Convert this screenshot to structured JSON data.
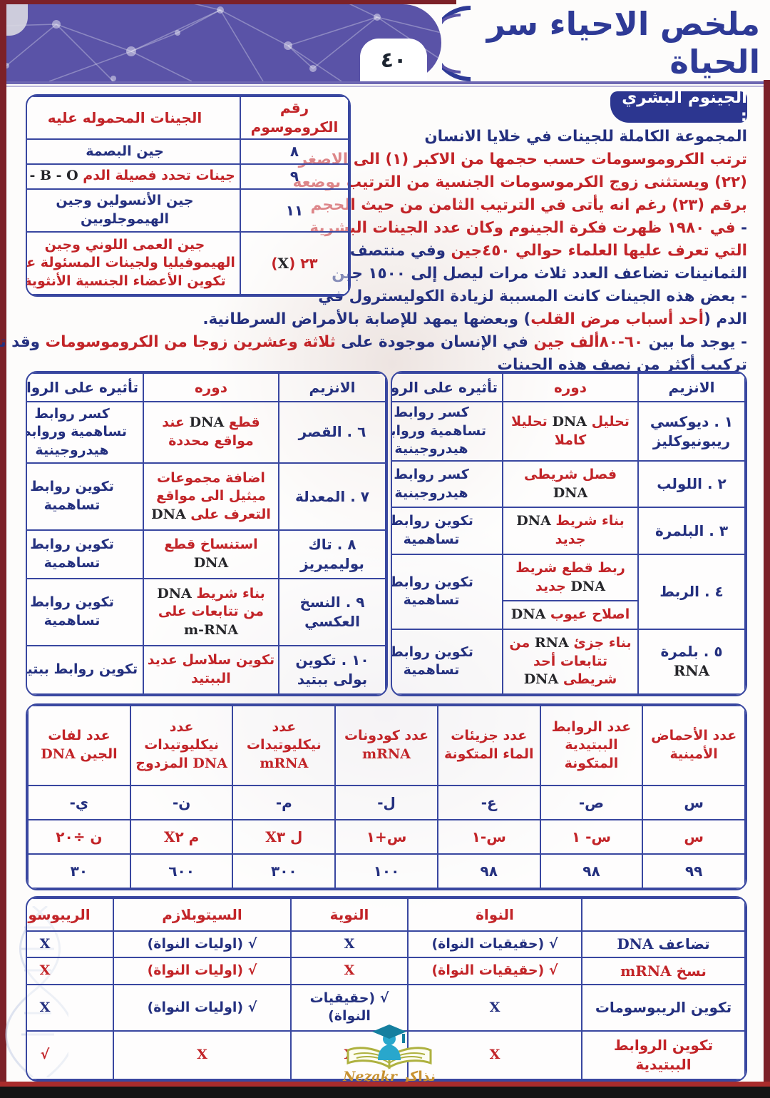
{
  "page": {
    "number": "٤٠",
    "title": "ملخص الاحياء سر الحياة"
  },
  "brand": {
    "ar": "نذاكر",
    "en": "Nezakr"
  },
  "genome": {
    "heading": "الجينوم البشري :",
    "lines": [
      [
        {
          "t": "المجموعة الكاملة للجينات في خلايا الانسان",
          "c": "b"
        }
      ],
      [
        {
          "t": "ترتب الكروموسومات حسب حجمها من الاكبر (١) الى الاصغر",
          "c": "r"
        }
      ],
      [
        {
          "t": "(٢٢) ويستثنى زوج الكرموسومات الجنسية من الترتيب بوضعه",
          "c": "r"
        }
      ],
      [
        {
          "t": "برقم (٢٣) رغم انه يأتى في الترتيب الثامن من حيث الحجم",
          "c": "r"
        }
      ],
      [
        {
          "t": "- ",
          "c": "b"
        },
        {
          "t": "في ١٩٨٠ ظهرت فكرة الجينوم وكان عدد الجينات البشرية",
          "c": "r"
        }
      ],
      [
        {
          "t": "التي تعرف عليها العلماء حوالي ٤٥٠جين ",
          "c": "r"
        },
        {
          "t": "وفي منتصف",
          "c": "b"
        }
      ],
      [
        {
          "t": "الثمانينات تضاعف العدد ثلاث مرات ليصل إلى ١٥٠٠ جين",
          "c": "b"
        }
      ],
      [
        {
          "t": "- بعض هذه الجينات كانت المسببة لزيادة الكوليسترول في",
          "c": "b"
        }
      ],
      [
        {
          "t": "الدم (",
          "c": "b"
        },
        {
          "t": "أحد أسباب مرض القلب",
          "c": "r"
        },
        {
          "t": ") وبعضها يمهد للإصابة بالأمراض السرطانية.",
          "c": "b"
        }
      ],
      [
        {
          "t": "- يوجد ما بين ",
          "c": "b"
        },
        {
          "t": "٦٠-٨٠ألف جين",
          "c": "r"
        },
        {
          "t": " في الإنسان موجودة على ",
          "c": "b"
        },
        {
          "t": "ثلاثة وعشرين زوجا من الكروموسومات",
          "c": "r"
        },
        {
          "t": " وقد تم اكتشاف",
          "c": "b"
        }
      ],
      [
        {
          "t": "تركيب أكثر من نصف هذه الجينات",
          "c": "b"
        }
      ]
    ]
  },
  "chromosome_table": {
    "headers": {
      "number": "رقم الكروموسوم",
      "genes": "الجينات المحموله عليه"
    },
    "rows": [
      {
        "number": "٨",
        "num_tone": "b",
        "genes": "جين البصمة",
        "genes_tone": "b"
      },
      {
        "number": "٩",
        "num_tone": "b",
        "genes": "جينات تحدد فصيلة الدم A - B - O",
        "genes_tone": "r"
      },
      {
        "number": "١١",
        "num_tone": "b",
        "genes": "جين الأنسولين وجين الهيموجلوبين",
        "genes_tone": "b"
      },
      {
        "number": "٢٣ (X)",
        "num_tone": "r",
        "genes": "جين العمى اللوني وجين الهيموفيليا ولجينات المسئولة عن تكوين الأعضاء الجنسية الأنثوية",
        "genes_tone": "r"
      }
    ]
  },
  "enzyme_table_right": {
    "headers": {
      "enzyme": "الانزيم",
      "role": "دوره",
      "effect": "تأثيره على الروابط"
    },
    "rows": [
      {
        "name": "١ . ديوكسي ريبونيوكليز",
        "role": "تحليل DNA تحليلا كاملا",
        "effect": "كسر روابط تساهمية وروابط هيدروجينية"
      },
      {
        "name": "٢ . اللولب",
        "role": "فصل شريطى DNA",
        "effect": "كسر روابط هيدروجينية"
      },
      {
        "name": "٣ . البلمرة",
        "role": "بناء شريط DNA جديد",
        "effect": "تكوين روابط تساهمية"
      },
      {
        "name": "٤ . الربط",
        "role_split": [
          "ربط قطع شريط DNA جديد",
          "اصلاح عيوب DNA"
        ],
        "effect": "تكوين روابط تساهمية"
      },
      {
        "name": "٥ . بلمرة RNA",
        "role": "بناء جزئ RNA من تتابعات أحد شريطى DNA",
        "effect": "تكوين روابط تساهمية"
      }
    ]
  },
  "enzyme_table_left": {
    "headers": {
      "enzyme": "الانزيم",
      "role": "دوره",
      "effect": "تأثيره على الروابط"
    },
    "rows": [
      {
        "name": "٦ . القصر",
        "role": "قطع DNA عند مواقع محددة",
        "effect": "كسر روابط تساهمية وروابط هيدروجينية"
      },
      {
        "name": "٧ . المعدلة",
        "role": "اضافة مجموعات ميثيل الى مواقع التعرف على DNA",
        "effect": "تكوين روابط تساهمية"
      },
      {
        "name": "٨ . تاك بوليميريز",
        "role": "استنساخ قطع DNA",
        "effect": "تكوين روابط تساهمية"
      },
      {
        "name": "٩ . النسخ العكسي",
        "role": "بناء شريط DNA من تتابعات على m-RNA",
        "effect": "تكوين روابط تساهمية"
      },
      {
        "name": "١٠ . تكوين بولى ببتيد",
        "role": "تكوين سلاسل عديد الببتيد",
        "effect": "تكوين روابط ببتيدية"
      }
    ]
  },
  "counts_table": {
    "headers": [
      "عدد الأحماض الأمينية",
      "عدد الروابط الببتيدية المتكونة",
      "عدد جزيئات الماء المتكونة",
      "عدد كودونات mRNA",
      "عدد نيكليوتيدات mRNA",
      "عدد نيكليوتيدات DNA المزدوج",
      "عدد لفات الجين DNA"
    ],
    "symbols": [
      "س",
      "ص-",
      "ع-",
      "ل-",
      "م-",
      "ن-",
      "ي-"
    ],
    "formulas": [
      "س",
      "س- ١",
      "س-١",
      "س+١",
      "ل X٣",
      "م X٢",
      "ن ÷٢٠"
    ],
    "values": [
      "٩٩",
      "٩٨",
      "٩٨",
      "١٠٠",
      "٣٠٠",
      "٦٠٠",
      "٣٠"
    ]
  },
  "location_table": {
    "headers": [
      "النواة",
      "النوية",
      "السيتوبلازم",
      "الريبوسومات"
    ],
    "rows": [
      {
        "label": "تضاعف DNA",
        "tone": "b",
        "cells": [
          "√ (حقيقيات النواة)",
          "X",
          "√ (اوليات النواة)",
          "X"
        ]
      },
      {
        "label": "نسخ mRNA",
        "tone": "r",
        "cells": [
          "√ (حقيقيات النواة)",
          "X",
          "√ (اوليات النواة)",
          "X"
        ]
      },
      {
        "label": "تكوين الريبوسومات",
        "tone": "b",
        "cells": [
          "X",
          "√ (حقيقيات النواة)",
          "√ (اوليات النواة)",
          "X"
        ]
      },
      {
        "label": "تكوين الروابط الببتيدية",
        "tone": "r",
        "cells": [
          "X",
          "X",
          "X",
          "√"
        ]
      }
    ]
  }
}
